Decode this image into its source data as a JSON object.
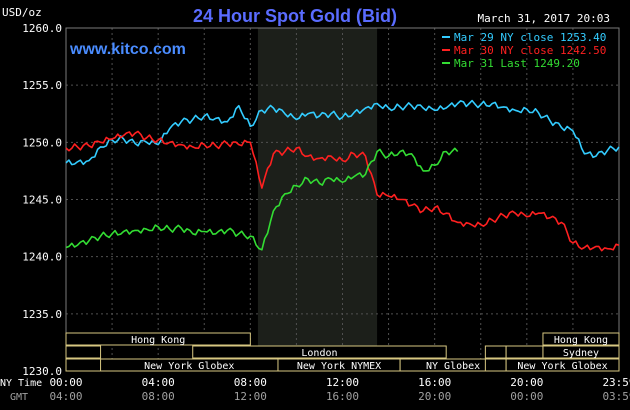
{
  "header": {
    "title": "24 Hour Spot Gold (Bid)",
    "date": "March 31, 2017 20:03",
    "unit": "USD/oz",
    "site": "www.kitco.com"
  },
  "colors": {
    "background": "#000000",
    "title": "#5a6cff",
    "site": "#4a8cff",
    "grid": "#505050",
    "axis_text": "#ffffff",
    "time_gmt": "#a0a0a0",
    "nymex_shade": "#1c1f1a",
    "session_border": "#d8c882"
  },
  "axis": {
    "x_row_label": "NY Time",
    "gmt_row_label": "GMT"
  },
  "sessions": [
    {
      "label": "Hong Kong",
      "start": 0,
      "end": 8,
      "row": 0
    },
    {
      "label": "",
      "start": 0,
      "end": 1.5,
      "row": 1
    },
    {
      "label": "London",
      "start": 5.5,
      "end": 16.5,
      "row": 1
    },
    {
      "label": "",
      "start": 0,
      "end": 16.5,
      "row": 2
    },
    {
      "label": "New York Globex",
      "start": 1.5,
      "end": 9.2,
      "row": 2
    },
    {
      "label": "New York NYMEX",
      "start": 9.2,
      "end": 14.5,
      "row": 2
    },
    {
      "label": "NY Globex",
      "start": 14.5,
      "end": 19.1,
      "row": 2
    },
    {
      "label": "Hong Kong",
      "start": 20.7,
      "end": 24,
      "row": 0
    },
    {
      "label": "",
      "start": 18.2,
      "end": 19.1,
      "row": 1
    },
    {
      "label": "",
      "start": 19.1,
      "end": 20.7,
      "row": 1
    },
    {
      "label": "Sydney",
      "start": 20.7,
      "end": 24,
      "row": 1
    },
    {
      "label": "",
      "start": 18.2,
      "end": 19.1,
      "row": 2
    },
    {
      "label": "New York Globex",
      "start": 19.1,
      "end": 24,
      "row": 2
    }
  ],
  "chart_data": {
    "type": "line",
    "ylim": [
      1230,
      1260
    ],
    "xlim": [
      0,
      24
    ],
    "yticks": [
      "1230.0",
      "1235.0",
      "1240.0",
      "1245.0",
      "1250.0",
      "1255.0",
      "1260.0"
    ],
    "xticks": [
      "00:00",
      "04:00",
      "08:00",
      "12:00",
      "16:00",
      "20:00",
      "23:59"
    ],
    "gmt_ticks": [
      "04:00",
      "08:00",
      "12:00",
      "16:00",
      "20:00",
      "00:00",
      "03:59"
    ],
    "shaded_region": [
      8.33,
      13.5
    ],
    "series": [
      {
        "name": "Mar 29 NY close 1253.40",
        "color": "#33ccff",
        "x": [
          0,
          0.5,
          1,
          1.5,
          2,
          2.5,
          3,
          3.5,
          4,
          4.5,
          5,
          5.5,
          6,
          6.5,
          7,
          7.5,
          8,
          8.5,
          9,
          9.5,
          10,
          10.5,
          11,
          11.5,
          12,
          12.5,
          13,
          13.5,
          14,
          14.5,
          15,
          15.5,
          16,
          16.5,
          17,
          17.5,
          18,
          18.5,
          19,
          19.5,
          20,
          20.5,
          21,
          21.5,
          22,
          22.5,
          23,
          23.5,
          24
        ],
        "values": [
          1248.2,
          1248.3,
          1248.4,
          1249.6,
          1250.2,
          1250.3,
          1249.9,
          1250.0,
          1249.8,
          1251.2,
          1251.8,
          1252.0,
          1252.3,
          1252.1,
          1251.8,
          1253.2,
          1251.4,
          1252.8,
          1253.0,
          1252.5,
          1252.0,
          1252.5,
          1252.3,
          1252.5,
          1252.2,
          1252.6,
          1253.0,
          1253.4,
          1253.0,
          1253.1,
          1253.2,
          1253.0,
          1252.8,
          1253.0,
          1253.4,
          1253.4,
          1253.3,
          1253.4,
          1253.1,
          1252.8,
          1252.9,
          1252.6,
          1251.9,
          1251.3,
          1251.0,
          1249.0,
          1248.8,
          1249.3,
          1249.6
        ]
      },
      {
        "name": "Mar 30 NY close 1242.50",
        "color": "#ff2020",
        "x": [
          0,
          0.5,
          1,
          1.5,
          2,
          2.5,
          3,
          3.5,
          4,
          4.5,
          5,
          5.5,
          6,
          6.5,
          7,
          7.5,
          8,
          8.5,
          9,
          9.5,
          10,
          10.5,
          11,
          11.5,
          12,
          12.5,
          13,
          13.5,
          14,
          14.5,
          15,
          15.5,
          16,
          16.5,
          17,
          17.5,
          18,
          18.5,
          19,
          19.5,
          20,
          20.5,
          21,
          21.5,
          22,
          22.5,
          23,
          23.5,
          24
        ],
        "values": [
          1249.5,
          1249.6,
          1249.7,
          1250.0,
          1250.3,
          1250.6,
          1250.8,
          1250.4,
          1250.2,
          1250.0,
          1249.8,
          1249.6,
          1249.8,
          1249.7,
          1249.9,
          1249.8,
          1250.0,
          1246.0,
          1249.0,
          1249.2,
          1249.5,
          1248.8,
          1248.6,
          1248.8,
          1248.4,
          1249.0,
          1248.8,
          1245.4,
          1245.3,
          1245.0,
          1244.5,
          1244.0,
          1244.3,
          1243.8,
          1243.0,
          1242.9,
          1242.8,
          1243.2,
          1243.6,
          1243.8,
          1243.5,
          1243.8,
          1243.4,
          1243.0,
          1241.2,
          1240.8,
          1240.9,
          1240.7,
          1241.0
        ]
      },
      {
        "name": "Mar 31 Last 1249.20",
        "color": "#33dd33",
        "x": [
          0,
          0.5,
          1,
          1.5,
          2,
          2.5,
          3,
          3.5,
          4,
          4.5,
          5,
          5.5,
          6,
          6.5,
          7,
          7.5,
          8,
          8.5,
          9,
          9.5,
          10,
          10.5,
          11,
          11.5,
          12,
          12.5,
          13,
          13.5,
          14,
          14.5,
          15,
          15.5,
          16,
          16.5,
          17
        ],
        "values": [
          1240.8,
          1241.0,
          1241.4,
          1241.8,
          1242.0,
          1242.2,
          1242.3,
          1242.4,
          1242.6,
          1242.4,
          1242.5,
          1242.0,
          1242.2,
          1242.0,
          1242.3,
          1242.0,
          1241.8,
          1240.6,
          1244.0,
          1245.5,
          1246.2,
          1246.8,
          1246.4,
          1246.8,
          1246.5,
          1247.0,
          1247.2,
          1249.2,
          1248.8,
          1249.2,
          1249.0,
          1247.5,
          1248.0,
          1249.2,
          1249.2
        ]
      }
    ]
  }
}
